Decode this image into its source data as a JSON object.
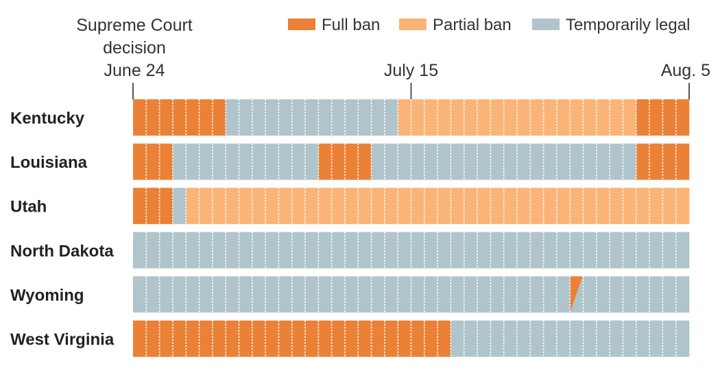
{
  "chart_data": {
    "type": "timeline",
    "title": "",
    "x_start": "June 24",
    "x_end": "Aug. 5",
    "total_days": 42,
    "annotations": [
      {
        "lines": [
          "Supreme Court",
          "decision",
          "June 24"
        ],
        "day": 0
      },
      {
        "lines": [
          "July 15"
        ],
        "day": 21
      },
      {
        "lines": [
          "Aug. 5"
        ],
        "day": 42
      }
    ],
    "legend": [
      {
        "key": "full",
        "label": "Full ban",
        "color": "#EB8136"
      },
      {
        "key": "partial",
        "label": "Partial ban",
        "color": "#FBB477"
      },
      {
        "key": "legal",
        "label": "Temporarily legal",
        "color": "#B0C4CB"
      }
    ],
    "rows": [
      {
        "state": "Kentucky",
        "segments": [
          {
            "status": "full",
            "days": 7
          },
          {
            "status": "legal",
            "days": 13
          },
          {
            "status": "partial",
            "days": 18
          },
          {
            "status": "full",
            "days": 4
          }
        ]
      },
      {
        "state": "Louisiana",
        "segments": [
          {
            "status": "full",
            "days": 3
          },
          {
            "status": "legal",
            "days": 11
          },
          {
            "status": "full",
            "days": 4
          },
          {
            "status": "legal",
            "days": 20
          },
          {
            "status": "full",
            "days": 4
          }
        ]
      },
      {
        "state": "Utah",
        "segments": [
          {
            "status": "full",
            "days": 3
          },
          {
            "status": "legal",
            "days": 1
          },
          {
            "status": "partial",
            "days": 38
          }
        ]
      },
      {
        "state": "North Dakota",
        "segments": [
          {
            "status": "legal",
            "days": 42
          }
        ]
      },
      {
        "state": "Wyoming",
        "segments": [
          {
            "status": "legal",
            "days": 33
          },
          {
            "status": "full-to-legal",
            "days": 1
          },
          {
            "status": "legal",
            "days": 8
          }
        ]
      },
      {
        "state": "West Virginia",
        "segments": [
          {
            "status": "full",
            "days": 24
          },
          {
            "status": "legal",
            "days": 18
          }
        ]
      }
    ]
  }
}
